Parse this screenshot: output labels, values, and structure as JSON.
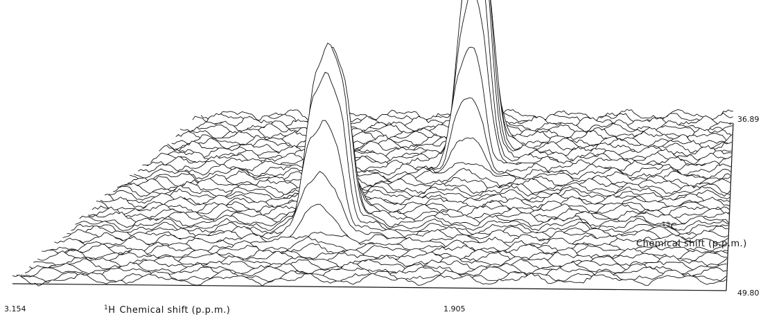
{
  "figure": {
    "h_axis": {
      "start": "3.154",
      "end": "1.905",
      "isotope_mass": "1",
      "isotope_element": "H",
      "label": "Chemical shift (p.p.m.)"
    },
    "c_axis": {
      "front": "49.80",
      "back": "36.89",
      "isotope_mass": "13",
      "isotope_element": "C",
      "label": "Chemical shift (p.p.m.)"
    }
  }
}
